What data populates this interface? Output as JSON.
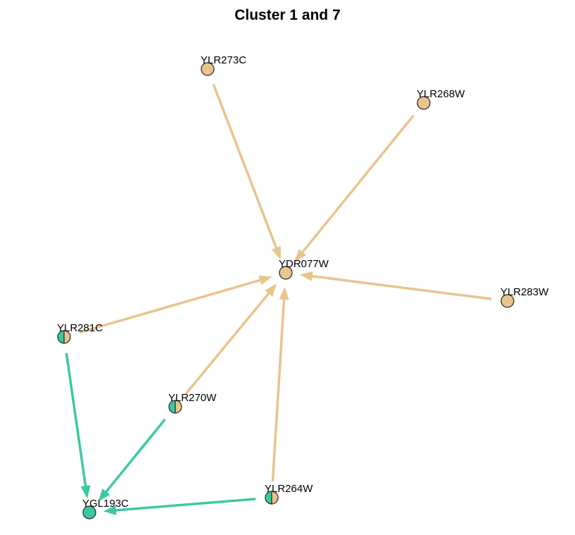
{
  "title": "Cluster 1 and 7",
  "colors": {
    "cluster_a": "#E8C48E",
    "cluster_b": "#3CC8A4",
    "outline": "#222222"
  },
  "nodes": [
    {
      "id": "YLR273C",
      "label": "YLR273C",
      "fill": "a"
    },
    {
      "id": "YLR268W",
      "label": "YLR268W",
      "fill": "a"
    },
    {
      "id": "YDR077W",
      "label": "YDR077W",
      "fill": "a"
    },
    {
      "id": "YLR283W",
      "label": "YLR283W",
      "fill": "a"
    },
    {
      "id": "YLR281C",
      "label": "YLR281C",
      "fill": "split"
    },
    {
      "id": "YLR270W",
      "label": "YLR270W",
      "fill": "split"
    },
    {
      "id": "YLR264W",
      "label": "YLR264W",
      "fill": "split"
    },
    {
      "id": "YGL193C",
      "label": "YGL193C",
      "fill": "b"
    }
  ],
  "edges": [
    {
      "from": "YLR273C",
      "to": "YDR077W",
      "color": "a"
    },
    {
      "from": "YLR268W",
      "to": "YDR077W",
      "color": "a"
    },
    {
      "from": "YLR283W",
      "to": "YDR077W",
      "color": "a"
    },
    {
      "from": "YLR281C",
      "to": "YDR077W",
      "color": "a"
    },
    {
      "from": "YLR270W",
      "to": "YDR077W",
      "color": "a"
    },
    {
      "from": "YLR264W",
      "to": "YDR077W",
      "color": "a"
    },
    {
      "from": "YLR281C",
      "to": "YGL193C",
      "color": "b"
    },
    {
      "from": "YLR270W",
      "to": "YGL193C",
      "color": "b"
    },
    {
      "from": "YLR264W",
      "to": "YGL193C",
      "color": "b"
    }
  ]
}
